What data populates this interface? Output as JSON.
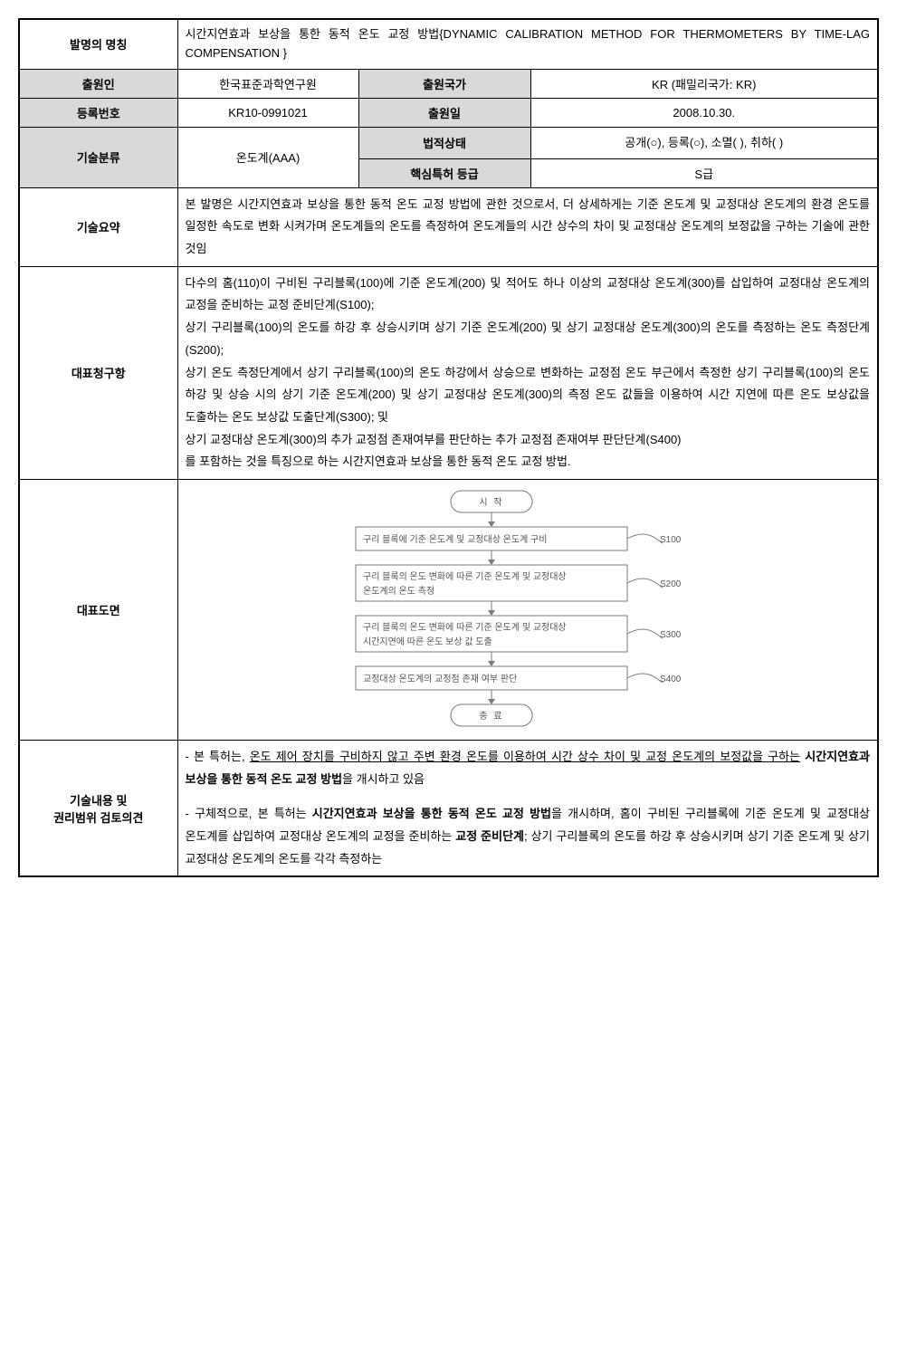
{
  "labels": {
    "invention_name": "발명의 명칭",
    "applicant": "출원인",
    "application_country": "출원국가",
    "registration_no": "등록번호",
    "application_date": "출원일",
    "tech_class": "기술분류",
    "legal_status": "법적상태",
    "core_patent_grade": "핵심특허 등급",
    "tech_summary": "기술요약",
    "rep_claim": "대표청구항",
    "rep_drawing": "대표도면",
    "review_opinion_l1": "기술내용 및",
    "review_opinion_l2": "권리범위 검토의견"
  },
  "values": {
    "invention_name": "시간지연효과 보상을 통한 동적 온도 교정 방법{DYNAMIC CALIBRATION METHOD FOR THERMOMETERS BY TIME-LAG COMPENSATION }",
    "applicant": "한국표준과학연구원",
    "application_country": "KR (패밀리국가: KR)",
    "registration_no": "KR10-0991021",
    "application_date": "2008.10.30.",
    "tech_class": "온도계(AAA)",
    "legal_status": "공개(○), 등록(○), 소멸(  ), 취하(  )",
    "core_patent_grade": "S급",
    "tech_summary": "본 발명은 시간지연효과 보상을 통한 동적 온도 교정 방법에 관한 것으로서, 더 상세하게는 기준 온도계 및 교정대상 온도계의 환경 온도를 일정한 속도로 변화 시켜가며 온도계들의 온도를 측정하여 온도계들의 시간 상수의 차이 및 교정대상 온도계의 보정값을 구하는 기술에 관한 것임",
    "rep_claim_p1": "다수의 홈(110)이 구비된 구리블록(100)에 기준 온도계(200) 및 적어도 하나 이상의 교정대상 온도계(300)를 삽입하여 교정대상 온도계의 교정을 준비하는 교정 준비단계(S100);",
    "rep_claim_p2": "상기 구리블록(100)의 온도를 하강 후 상승시키며 상기 기준 온도계(200) 및 상기 교정대상 온도계(300)의 온도를 측정하는 온도 측정단계(S200);",
    "rep_claim_p3": "상기 온도 측정단계에서 상기 구리블록(100)의 온도 하강에서 상승으로 변화하는 교정점 온도 부근에서 측정한 상기 구리블록(100)의 온도 하강 및 상승 시의 상기 기준 온도계(200) 및 상기 교정대상 온도계(300)의 측정 온도 값들을 이용하여 시간 지연에 따른 온도 보상값을 도출하는 온도 보상값 도출단계(S300); 및",
    "rep_claim_p4": "상기 교정대상 온도계(300)의 추가 교정점 존재여부를 판단하는 추가 교정점 존재여부 판단단계(S400)",
    "rep_claim_p5": "를 포함하는 것을 특징으로 하는 시간지연효과 보상을 통한 동적 온도 교정 방법.",
    "review_p1_a": "- 본 특허는, ",
    "review_p1_u": "온도 제어 장치를 구비하지 않고 주변 환경 온도를 이용하여 시간 상수 차이 및 교정 온도계의 보정값을 구하는",
    "review_p1_b": " 시간지연효과 보상을 통한 동적 온도 교정 방법",
    "review_p1_c": "을 개시하고 있음",
    "review_p2_a": "- 구체적으로, 본 특허는 ",
    "review_p2_b": "시간지연효과 보상을 통한 동적 온도 교정 방법",
    "review_p2_c": "을 개시하며, 홈이 구비된 구리블록에 기준 온도계 및 교정대상 온도계를 삽입하여 교정대상 온도계의 교정을 준비하는 ",
    "review_p2_d": "교정 준비단계",
    "review_p2_e": "; 상기 구리블록의 온도를 하강 후 상승시키며 상기 기준 온도계 및 상기 교정대상 온도계의 온도를 각각 측정하는"
  },
  "flowchart": {
    "background_color": "#ffffff",
    "stroke": "#7a7a7a",
    "text_color": "#555555",
    "font_size": 10,
    "start": "시 작",
    "end": "종 료",
    "steps": [
      {
        "text_l1": "구리 블록에 기준 온도계 및 교정대상 온도계 구비",
        "text_l2": "",
        "tag": "S100"
      },
      {
        "text_l1": "구리 블록의 온도 변화에 따른 기준 온도계 및 교정대상",
        "text_l2": "온도계의 온도 측정",
        "tag": "S200"
      },
      {
        "text_l1": "구리 블록의 온도 변화에 따른 기준 온도계 및 교정대상",
        "text_l2": "시간지연에 따른 온도 보상 값 도출",
        "tag": "S300"
      },
      {
        "text_l1": "교정대상 온도계의 교정점 존재 여부 판단",
        "text_l2": "",
        "tag": "S400"
      }
    ]
  }
}
